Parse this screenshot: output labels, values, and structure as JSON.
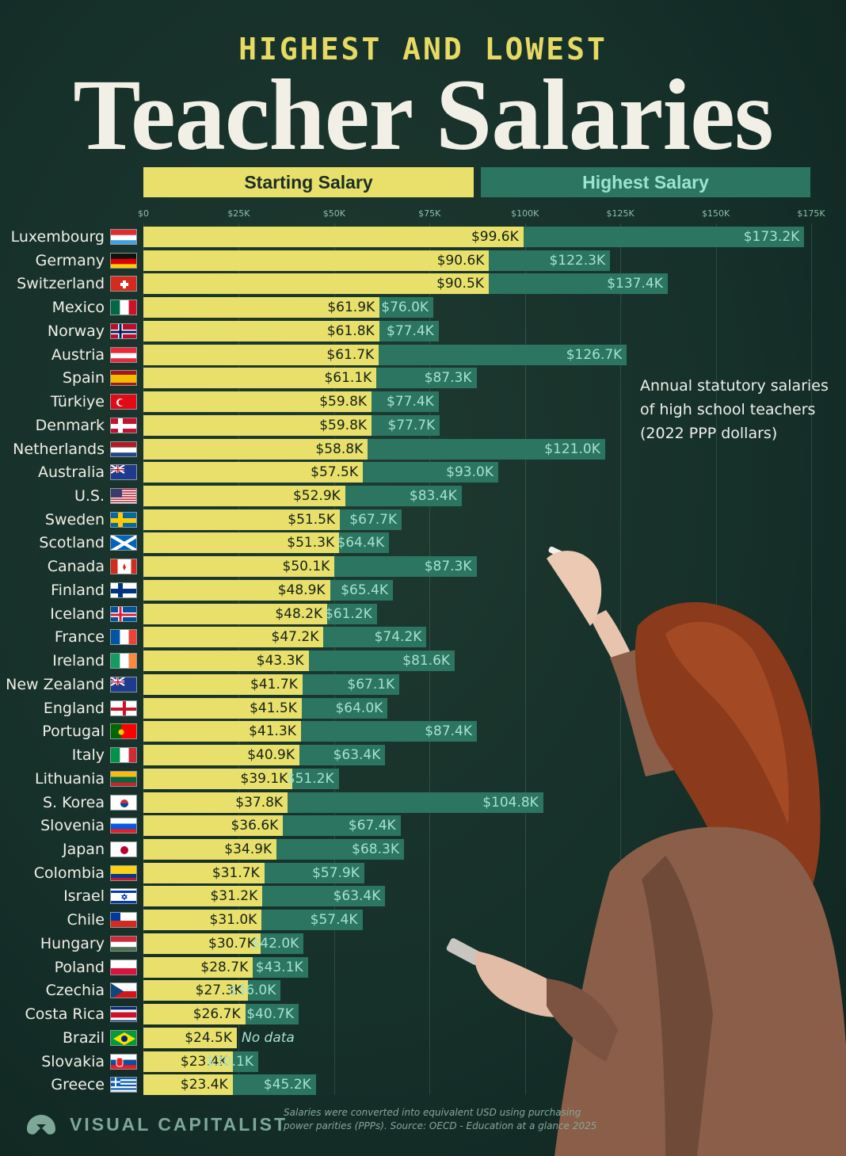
{
  "header": {
    "subtitle": "HIGHEST AND LOWEST",
    "title": "Teacher Salaries"
  },
  "legend": {
    "starting": "Starting Salary",
    "highest": "Highest Salary"
  },
  "note": [
    "Annual statutory salaries",
    "of high school teachers",
    "(2022 PPP dollars)"
  ],
  "footer": {
    "brand": "VISUAL CAPITALIST",
    "source_line1": "Salaries were converted into equivalent USD using purchasing",
    "source_line2": "power parities (PPPs). Source: OECD - Education at a glance 2025"
  },
  "colors": {
    "starting": "#e8e06a",
    "highest": "#2b7561",
    "background": "#16302a",
    "subtitle": "#e6da63"
  },
  "chart_data": {
    "type": "bar",
    "orientation": "horizontal",
    "xlim": [
      0,
      175000
    ],
    "grid": true,
    "ticks": [
      {
        "value": 0,
        "label": "$0"
      },
      {
        "value": 25000,
        "label": "$25K"
      },
      {
        "value": 50000,
        "label": "$50K"
      },
      {
        "value": 75000,
        "label": "$75K"
      },
      {
        "value": 100000,
        "label": "$100K"
      },
      {
        "value": 125000,
        "label": "$125K"
      },
      {
        "value": 150000,
        "label": "$150K"
      },
      {
        "value": 175000,
        "label": "$175K"
      }
    ],
    "series": [
      {
        "name": "Starting Salary"
      },
      {
        "name": "Highest Salary"
      }
    ],
    "rows": [
      {
        "country": "Luxembourg",
        "flag": "lux",
        "start": 99600,
        "start_label": "$99.6K",
        "high": 173200,
        "high_label": "$173.2K"
      },
      {
        "country": "Germany",
        "flag": "deu",
        "start": 90600,
        "start_label": "$90.6K",
        "high": 122300,
        "high_label": "$122.3K"
      },
      {
        "country": "Switzerland",
        "flag": "che",
        "start": 90500,
        "start_label": "$90.5K",
        "high": 137400,
        "high_label": "$137.4K"
      },
      {
        "country": "Mexico",
        "flag": "mex",
        "start": 61900,
        "start_label": "$61.9K",
        "high": 76000,
        "high_label": "$76.0K"
      },
      {
        "country": "Norway",
        "flag": "nor",
        "start": 61800,
        "start_label": "$61.8K",
        "high": 77400,
        "high_label": "$77.4K"
      },
      {
        "country": "Austria",
        "flag": "aut",
        "start": 61700,
        "start_label": "$61.7K",
        "high": 126700,
        "high_label": "$126.7K"
      },
      {
        "country": "Spain",
        "flag": "esp",
        "start": 61100,
        "start_label": "$61.1K",
        "high": 87300,
        "high_label": "$87.3K"
      },
      {
        "country": "Türkiye",
        "flag": "tur",
        "start": 59800,
        "start_label": "$59.8K",
        "high": 77400,
        "high_label": "$77.4K"
      },
      {
        "country": "Denmark",
        "flag": "dnk",
        "start": 59800,
        "start_label": "$59.8K",
        "high": 77700,
        "high_label": "$77.7K"
      },
      {
        "country": "Netherlands",
        "flag": "nld",
        "start": 58800,
        "start_label": "$58.8K",
        "high": 121000,
        "high_label": "$121.0K"
      },
      {
        "country": "Australia",
        "flag": "aus",
        "start": 57500,
        "start_label": "$57.5K",
        "high": 93000,
        "high_label": "$93.0K"
      },
      {
        "country": "U.S.",
        "flag": "usa",
        "start": 52900,
        "start_label": "$52.9K",
        "high": 83400,
        "high_label": "$83.4K"
      },
      {
        "country": "Sweden",
        "flag": "swe",
        "start": 51500,
        "start_label": "$51.5K",
        "high": 67700,
        "high_label": "$67.7K"
      },
      {
        "country": "Scotland",
        "flag": "sco",
        "start": 51300,
        "start_label": "$51.3K",
        "high": 64400,
        "high_label": "$64.4K"
      },
      {
        "country": "Canada",
        "flag": "can",
        "start": 50100,
        "start_label": "$50.1K",
        "high": 87300,
        "high_label": "$87.3K"
      },
      {
        "country": "Finland",
        "flag": "fin",
        "start": 48900,
        "start_label": "$48.9K",
        "high": 65400,
        "high_label": "$65.4K"
      },
      {
        "country": "Iceland",
        "flag": "isl",
        "start": 48200,
        "start_label": "$48.2K",
        "high": 61200,
        "high_label": "$61.2K"
      },
      {
        "country": "France",
        "flag": "fra",
        "start": 47200,
        "start_label": "$47.2K",
        "high": 74200,
        "high_label": "$74.2K"
      },
      {
        "country": "Ireland",
        "flag": "irl",
        "start": 43300,
        "start_label": "$43.3K",
        "high": 81600,
        "high_label": "$81.6K"
      },
      {
        "country": "New Zealand",
        "flag": "nzl",
        "start": 41700,
        "start_label": "$41.7K",
        "high": 67100,
        "high_label": "$67.1K"
      },
      {
        "country": "England",
        "flag": "eng",
        "start": 41500,
        "start_label": "$41.5K",
        "high": 64000,
        "high_label": "$64.0K"
      },
      {
        "country": "Portugal",
        "flag": "prt",
        "start": 41300,
        "start_label": "$41.3K",
        "high": 87400,
        "high_label": "$87.4K"
      },
      {
        "country": "Italy",
        "flag": "ita",
        "start": 40900,
        "start_label": "$40.9K",
        "high": 63400,
        "high_label": "$63.4K"
      },
      {
        "country": "Lithuania",
        "flag": "ltu",
        "start": 39100,
        "start_label": "$39.1K",
        "high": 51200,
        "high_label": "$51.2K"
      },
      {
        "country": "S. Korea",
        "flag": "kor",
        "start": 37800,
        "start_label": "$37.8K",
        "high": 104800,
        "high_label": "$104.8K"
      },
      {
        "country": "Slovenia",
        "flag": "svn",
        "start": 36600,
        "start_label": "$36.6K",
        "high": 67400,
        "high_label": "$67.4K"
      },
      {
        "country": "Japan",
        "flag": "jpn",
        "start": 34900,
        "start_label": "$34.9K",
        "high": 68300,
        "high_label": "$68.3K"
      },
      {
        "country": "Colombia",
        "flag": "col",
        "start": 31700,
        "start_label": "$31.7K",
        "high": 57900,
        "high_label": "$57.9K"
      },
      {
        "country": "Israel",
        "flag": "isr",
        "start": 31200,
        "start_label": "$31.2K",
        "high": 63400,
        "high_label": "$63.4K"
      },
      {
        "country": "Chile",
        "flag": "chl",
        "start": 31000,
        "start_label": "$31.0K",
        "high": 57400,
        "high_label": "$57.4K"
      },
      {
        "country": "Hungary",
        "flag": "hun",
        "start": 30700,
        "start_label": "$30.7K",
        "high": 42000,
        "high_label": "$42.0K"
      },
      {
        "country": "Poland",
        "flag": "pol",
        "start": 28700,
        "start_label": "$28.7K",
        "high": 43100,
        "high_label": "$43.1K"
      },
      {
        "country": "Czechia",
        "flag": "cze",
        "start": 27300,
        "start_label": "$27.3K",
        "high": 36000,
        "high_label": "$36.0K"
      },
      {
        "country": "Costa Rica",
        "flag": "cri",
        "start": 26700,
        "start_label": "$26.7K",
        "high": 40700,
        "high_label": "$40.7K"
      },
      {
        "country": "Brazil",
        "flag": "bra",
        "start": 24500,
        "start_label": "$24.5K",
        "high": null,
        "high_label": "No data"
      },
      {
        "country": "Slovakia",
        "flag": "svk",
        "start": 23400,
        "start_label": "$23.4K",
        "high": 30100,
        "high_label": "$30.1K"
      },
      {
        "country": "Greece",
        "flag": "grc",
        "start": 23400,
        "start_label": "$23.4K",
        "high": 45200,
        "high_label": "$45.2K"
      }
    ]
  }
}
